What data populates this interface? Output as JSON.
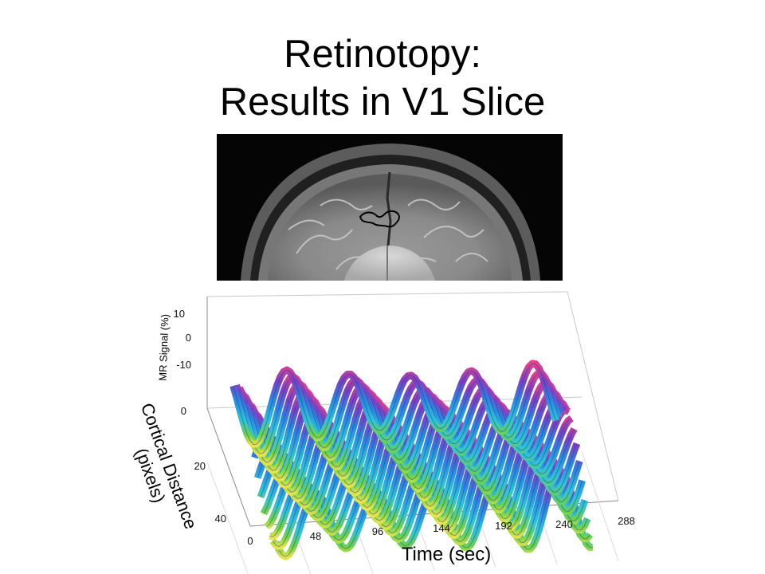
{
  "slide": {
    "title_line1": "Retinotopy:",
    "title_line2": "Results in V1 Slice"
  },
  "figure": {
    "mri_image": "axial MRI slice of brain with outlined V1 region"
  },
  "chart_data": {
    "type": "surface",
    "title": "",
    "xlabel": "Time (sec)",
    "ylabel": "Cortical Distance (pixels)",
    "zlabel": "MR Signal (%)",
    "x_ticks": [
      "0",
      "48",
      "96",
      "144",
      "192",
      "240",
      "288"
    ],
    "y_ticks": [
      "0",
      "20",
      "40"
    ],
    "z_ticks": [
      "10",
      "0",
      "-10"
    ],
    "xlim": [
      0,
      288
    ],
    "ylim": [
      0,
      40
    ],
    "zlim": [
      -10,
      10
    ],
    "period_sec": 48,
    "cycles": 6,
    "amplitude_percent": 8,
    "colormap": "hsv-like (blue, cyan, green, yellow, magenta)"
  }
}
